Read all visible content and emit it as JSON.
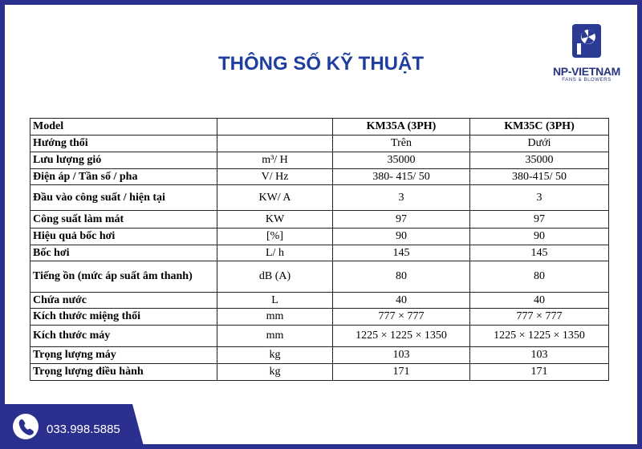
{
  "header": {
    "title": "THÔNG SỐ KỸ THUẬT",
    "brand": "NP-VIETNAM",
    "tagline": "FANS & BLOWERS"
  },
  "table": {
    "head": {
      "label": "Model",
      "columns": [
        "KM35A (3PH)",
        "KM35C (3PH)"
      ]
    },
    "rows": [
      {
        "label": "Hướng thổi",
        "values": [
          "Trên",
          "Dưới"
        ]
      },
      {
        "label": "Lưu lượng gió",
        "unit": "m³/ H",
        "values": [
          "35000",
          "35000"
        ]
      },
      {
        "label": "Điện áp / Tần số / pha",
        "unit": "V/ Hz",
        "values": [
          "380- 415/ 50",
          "380-415/ 50"
        ]
      },
      {
        "label": "Đầu vào công suất / hiện tại",
        "unit": "KW/ A",
        "values": [
          "3",
          "3"
        ]
      },
      {
        "label": "Công suất làm mát",
        "unit": "KW",
        "values": [
          "97",
          "97"
        ]
      },
      {
        "label": "Hiệu quả bốc hơi",
        "unit": "[%]",
        "values": [
          "90",
          "90"
        ]
      },
      {
        "label": "Bốc hơi",
        "unit": "L/ h",
        "values": [
          "145",
          "145"
        ]
      },
      {
        "label": "Tiếng ồn (mức áp suất âm thanh)",
        "unit": "dB (A)",
        "values": [
          "80",
          "80"
        ]
      },
      {
        "label": "Chứa nước",
        "unit": "L",
        "values": [
          "40",
          "40"
        ]
      },
      {
        "label": "Kích thước miệng thổi",
        "unit": "mm",
        "values": [
          "777 × 777",
          "777 × 777"
        ]
      },
      {
        "label": "Kích thước máy",
        "unit": "mm",
        "values": [
          "1225 × 1225 × 1350",
          "1225 × 1225 × 1350"
        ]
      },
      {
        "label": "Trọng lượng máy",
        "unit": "kg",
        "values": [
          "103",
          "103"
        ]
      },
      {
        "label": "Trọng lượng điều hành",
        "unit": "kg",
        "values": [
          "171",
          "171"
        ]
      }
    ]
  },
  "footer": {
    "phone": "033.998.5885"
  }
}
